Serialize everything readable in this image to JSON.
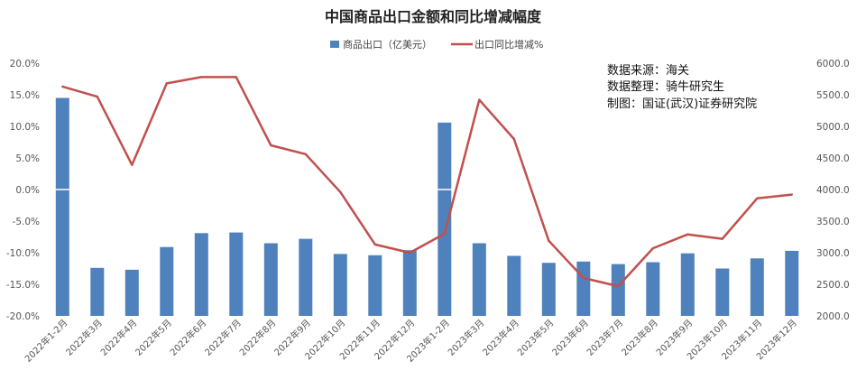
{
  "chart_data": {
    "type": "bar+line",
    "title": "中国商品出口金额和同比增减幅度",
    "categories": [
      "2022年1-2月",
      "2022年3月",
      "2022年4月",
      "2022年5月",
      "2022年6月",
      "2022年7月",
      "2022年8月",
      "2022年9月",
      "2022年10月",
      "2022年11月",
      "2022年12月",
      "2023年1-2月",
      "2023年3月",
      "2023年4月",
      "2023年5月",
      "2023年6月",
      "2023年7月",
      "2023年8月",
      "2023年9月",
      "2023年10月",
      "2023年11月",
      "2023年12月"
    ],
    "series": [
      {
        "name": "商品出口（亿美元）",
        "type": "bar",
        "axis": "right",
        "color": "#4f81bd",
        "values": [
          5450,
          2760,
          2730,
          3090,
          3310,
          3320,
          3150,
          3220,
          2980,
          2960,
          3040,
          5060,
          3150,
          2950,
          2840,
          2860,
          2820,
          2850,
          2990,
          2750,
          2910,
          3030
        ]
      },
      {
        "name": "出口同比增减%",
        "type": "line",
        "axis": "left",
        "color": "#c0504d",
        "values": [
          16.3,
          14.7,
          3.9,
          16.8,
          17.8,
          17.8,
          7.0,
          5.6,
          -0.4,
          -8.7,
          -10.0,
          -7.0,
          14.2,
          8.0,
          -8.1,
          -14.0,
          -15.3,
          -9.3,
          -7.1,
          -7.8,
          -1.4,
          -0.8
        ]
      }
    ],
    "y_left": {
      "min": -20,
      "max": 20,
      "step": 5,
      "format": "percent"
    },
    "y_right": {
      "min": 2000,
      "max": 6000,
      "step": 500,
      "format": "fixed1"
    },
    "grid": false,
    "legend_position": "top"
  },
  "annotation": {
    "lines": [
      "数据来源：海关",
      "数据整理：骑牛研究生",
      "制图：国证(武汉)证券研究院"
    ]
  }
}
